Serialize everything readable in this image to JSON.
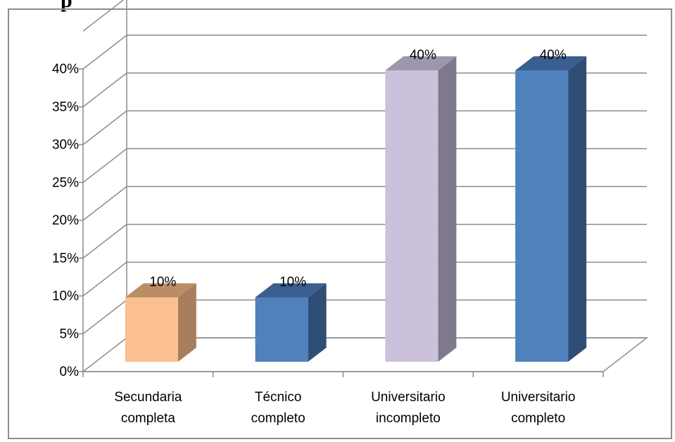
{
  "chart_data": {
    "type": "bar",
    "style": "3d-column",
    "title": "",
    "xlabel": "",
    "ylabel": "",
    "categories": [
      [
        "Secundaria",
        "completa"
      ],
      [
        "Técnico",
        "completo"
      ],
      [
        "Universitario",
        "incompleto"
      ],
      [
        "Universitario",
        "completo"
      ]
    ],
    "values": [
      10,
      10,
      40,
      40
    ],
    "data_labels": [
      "10%",
      "10%",
      "40%",
      "40%"
    ],
    "ylim": [
      0,
      40
    ],
    "y_ticks": [
      0,
      5,
      10,
      15,
      20,
      25,
      30,
      35,
      40
    ],
    "y_tick_labels": [
      "0%",
      "5%",
      "10%",
      "15%",
      "20%",
      "25%",
      "30%",
      "35%",
      "40%"
    ],
    "grid": true,
    "legend": "none",
    "colors": {
      "front": [
        "#fac090",
        "#4f81bd",
        "#ccc1da",
        "#4f81bd"
      ],
      "side": [
        "#a77f5c",
        "#2f4e76",
        "#7f7a8b",
        "#2f4e76"
      ],
      "top": [
        "#b98d66",
        "#3a5f8f",
        "#9e96ab",
        "#3a5f8f"
      ],
      "grid": "#8c8c8c",
      "border": "#8c8c8c"
    }
  }
}
